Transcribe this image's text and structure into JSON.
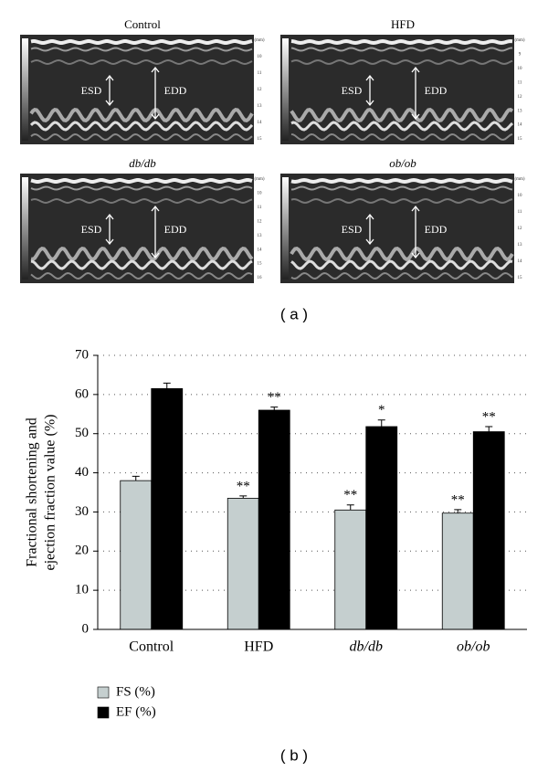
{
  "panel_a": {
    "label": "( a )",
    "images": [
      {
        "title": "Control",
        "italic": false,
        "labels": [
          "ESD",
          "EDD"
        ],
        "scale": [
          "(mm)",
          "10",
          "11",
          "12",
          "13",
          "14",
          "15"
        ]
      },
      {
        "title": "HFD",
        "italic": false,
        "labels": [
          "ESD",
          "EDD"
        ],
        "scale": [
          "(mm)",
          "9",
          "10",
          "11",
          "12",
          "13",
          "14",
          "15"
        ]
      },
      {
        "title": "db/db",
        "italic": true,
        "labels": [
          "ESD",
          "EDD"
        ],
        "scale": [
          "(mm)",
          "10",
          "11",
          "12",
          "13",
          "14",
          "15",
          "16"
        ]
      },
      {
        "title": "ob/ob",
        "italic": true,
        "labels": [
          "ESD",
          "EDD"
        ],
        "scale": [
          "(mm)",
          "10",
          "11",
          "12",
          "13",
          "14",
          "15"
        ]
      }
    ]
  },
  "chart_data": {
    "type": "bar",
    "label": "( b )",
    "ylabel": [
      "Fractional shortening and",
      "ejection fraction value (%)"
    ],
    "categories": [
      "Control",
      "HFD",
      "db/db",
      "ob/ob"
    ],
    "category_italic": [
      false,
      false,
      true,
      true
    ],
    "series": [
      {
        "name": "FS (%)",
        "color": "#c5cfcf",
        "values": [
          38,
          33.5,
          30.5,
          29.7
        ],
        "errors": [
          1.1,
          0.6,
          1.3,
          0.9
        ],
        "annotations": [
          null,
          "**",
          "**",
          "**"
        ]
      },
      {
        "name": "EF (%)",
        "color": "#000000",
        "values": [
          61.5,
          56,
          51.8,
          50.5
        ],
        "errors": [
          1.4,
          0.8,
          1.7,
          1.3
        ],
        "annotations": [
          null,
          "**",
          "*",
          "**"
        ]
      }
    ],
    "ylim": [
      0,
      70
    ],
    "yticks": [
      0,
      10,
      20,
      30,
      40,
      50,
      60,
      70
    ],
    "grid": true,
    "legend": "bottom-left"
  }
}
